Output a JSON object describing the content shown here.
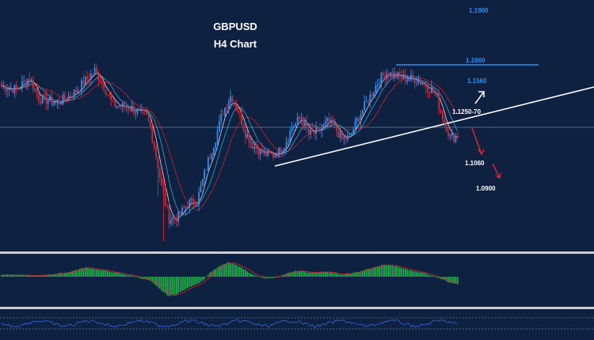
{
  "chart_data": {
    "type": "candlestick",
    "title": "GBPUSD",
    "subtitle": "H4 Chart",
    "colors": {
      "background": "#0f2140",
      "bull_candle": "#2f8ff0",
      "bear_candle": "#e0242e",
      "ma_fast": "#ffffff",
      "ma_mid": "#39c0e8",
      "ma_slow": "#e0242e",
      "trendline": "#ffffff",
      "resistance": "#2f8ff0",
      "histogram": "#22b04a",
      "signal_line": "#e0242e",
      "oscillator": "#3060d0",
      "arrow_up": "#ffffff",
      "arrow_down": "#e0242e"
    },
    "levels": [
      {
        "label": "1.1900",
        "value": 1.19,
        "color": "#2f8ff0"
      },
      {
        "label": "1.1660",
        "value": 1.166,
        "color": "#2f8ff0"
      },
      {
        "label": "1.1560",
        "value": 1.156,
        "color": "#2f8ff0"
      },
      {
        "label": "1.1250-70",
        "value": 1.126,
        "color": "#ffffff"
      },
      {
        "label": "1.1060",
        "value": 1.106,
        "color": "#ffffff"
      },
      {
        "label": "1.0900",
        "value": 1.09,
        "color": "#ffffff"
      }
    ],
    "price_waypoints": [
      [
        0,
        1.152
      ],
      [
        8,
        1.15
      ],
      [
        15,
        1.157
      ],
      [
        20,
        1.145
      ],
      [
        30,
        1.142
      ],
      [
        40,
        1.149
      ],
      [
        45,
        1.155
      ],
      [
        50,
        1.161
      ],
      [
        55,
        1.152
      ],
      [
        60,
        1.141
      ],
      [
        70,
        1.139
      ],
      [
        78,
        1.134
      ],
      [
        80,
        1.128
      ],
      [
        83,
        1.112
      ],
      [
        86,
        1.093
      ],
      [
        90,
        1.075
      ],
      [
        95,
        1.076
      ],
      [
        100,
        1.084
      ],
      [
        105,
        1.085
      ],
      [
        110,
        1.105
      ],
      [
        115,
        1.122
      ],
      [
        119,
        1.137
      ],
      [
        123,
        1.146
      ],
      [
        127,
        1.138
      ],
      [
        131,
        1.125
      ],
      [
        135,
        1.118
      ],
      [
        139,
        1.114
      ],
      [
        143,
        1.112
      ],
      [
        146,
        1.112
      ],
      [
        149,
        1.114
      ],
      [
        152,
        1.118
      ],
      [
        156,
        1.128
      ],
      [
        161,
        1.134
      ],
      [
        165,
        1.124
      ],
      [
        170,
        1.125
      ],
      [
        175,
        1.131
      ],
      [
        179,
        1.128
      ],
      [
        183,
        1.121
      ],
      [
        187,
        1.122
      ],
      [
        191,
        1.132
      ],
      [
        195,
        1.14
      ],
      [
        199,
        1.148
      ],
      [
        203,
        1.156
      ],
      [
        207,
        1.16
      ],
      [
        211,
        1.158
      ],
      [
        215,
        1.157
      ],
      [
        219,
        1.156
      ],
      [
        223,
        1.156
      ],
      [
        227,
        1.153
      ],
      [
        231,
        1.15
      ],
      [
        234,
        1.144
      ],
      [
        238,
        1.131
      ],
      [
        241,
        1.122
      ],
      [
        245,
        1.123
      ]
    ],
    "wick_spikes": [
      [
        84,
        1.088
      ],
      [
        87,
        1.062
      ],
      [
        94,
        1.07
      ]
    ],
    "macd_waypoints": [
      [
        0,
        0.1
      ],
      [
        20,
        0.05
      ],
      [
        35,
        0.2
      ],
      [
        45,
        0.45
      ],
      [
        55,
        0.3
      ],
      [
        70,
        0.05
      ],
      [
        80,
        -0.2
      ],
      [
        85,
        -0.6
      ],
      [
        90,
        -0.95
      ],
      [
        95,
        -0.8
      ],
      [
        100,
        -0.55
      ],
      [
        108,
        -0.2
      ],
      [
        112,
        0.2
      ],
      [
        118,
        0.55
      ],
      [
        122,
        0.7
      ],
      [
        128,
        0.5
      ],
      [
        135,
        0.1
      ],
      [
        142,
        -0.1
      ],
      [
        150,
        0.05
      ],
      [
        158,
        0.3
      ],
      [
        166,
        0.2
      ],
      [
        175,
        0.25
      ],
      [
        182,
        0.1
      ],
      [
        190,
        0.2
      ],
      [
        198,
        0.4
      ],
      [
        206,
        0.6
      ],
      [
        212,
        0.5
      ],
      [
        220,
        0.3
      ],
      [
        228,
        0.15
      ],
      [
        235,
        -0.05
      ],
      [
        240,
        -0.25
      ],
      [
        245,
        -0.35
      ]
    ]
  }
}
